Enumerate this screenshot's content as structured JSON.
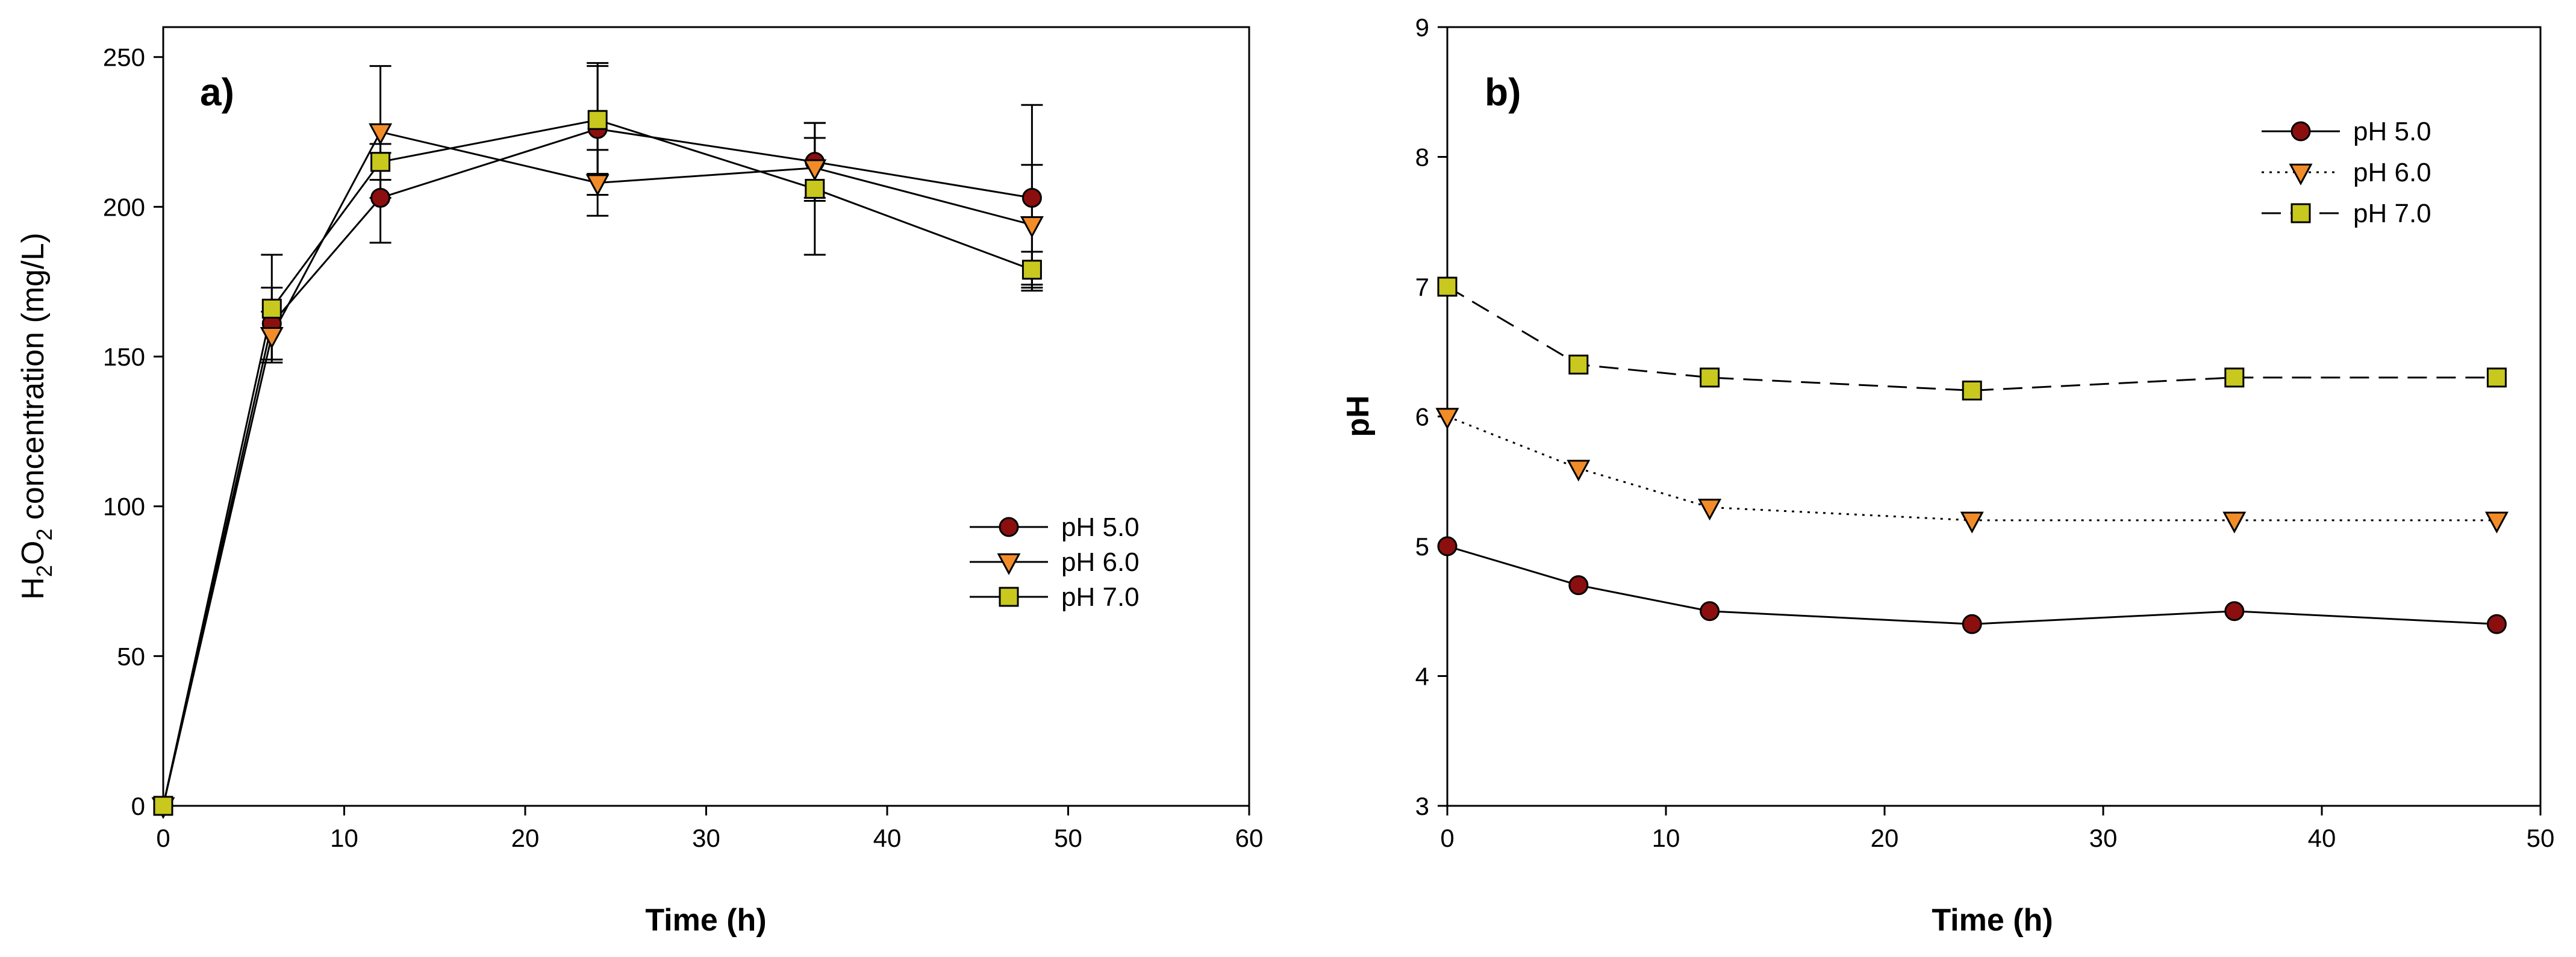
{
  "colors": {
    "ph5": "#8b0f0f",
    "ph6": "#f28c28",
    "ph7": "#c8c81e",
    "line": "#000000"
  },
  "chart_data": [
    {
      "id": "a",
      "type": "line",
      "panel_label": "a)",
      "xlabel": "Time (h)",
      "ylabel": {
        "main": "H",
        "sub1": "2",
        "mid": "O",
        "sub2": "2",
        "rest": " concentration (mg/L)"
      },
      "xlim": [
        0,
        60
      ],
      "ylim": [
        0,
        260
      ],
      "xticks": [
        0,
        10,
        20,
        30,
        40,
        50,
        60
      ],
      "yticks": [
        0,
        50,
        100,
        150,
        200,
        250
      ],
      "x": [
        0,
        6,
        12,
        24,
        36,
        48
      ],
      "legend_position": "right-middle",
      "series": [
        {
          "name": "pH 5.0",
          "marker": "circle",
          "color_key": "ph5",
          "dash": "solid",
          "values": [
            0,
            161,
            203,
            226,
            215,
            203
          ],
          "errors": [
            0,
            12,
            15,
            22,
            13,
            31
          ]
        },
        {
          "name": "pH 6.0",
          "marker": "triangle-down",
          "color_key": "ph6",
          "dash": "solid",
          "values": [
            0,
            157,
            225,
            208,
            213,
            194
          ],
          "errors": [
            0,
            8,
            22,
            11,
            10,
            20
          ]
        },
        {
          "name": "pH 7.0",
          "marker": "square",
          "color_key": "ph7",
          "dash": "solid",
          "values": [
            0,
            166,
            215,
            229,
            206,
            179
          ],
          "errors": [
            0,
            18,
            6,
            18,
            22,
            6
          ]
        }
      ]
    },
    {
      "id": "b",
      "type": "line",
      "panel_label": "b)",
      "xlabel": "Time (h)",
      "ylabel": {
        "main": "pH"
      },
      "xlim": [
        0,
        50
      ],
      "ylim": [
        3,
        9
      ],
      "xticks": [
        0,
        10,
        20,
        30,
        40,
        50
      ],
      "yticks": [
        3,
        4,
        5,
        6,
        7,
        8,
        9
      ],
      "x": [
        0,
        6,
        12,
        24,
        36,
        48
      ],
      "legend_position": "top-right",
      "series": [
        {
          "name": "pH 5.0",
          "marker": "circle",
          "color_key": "ph5",
          "dash": "solid",
          "values": [
            5.0,
            4.7,
            4.5,
            4.4,
            4.5,
            4.4
          ]
        },
        {
          "name": "pH 6.0",
          "marker": "triangle-down",
          "color_key": "ph6",
          "dash": "dotted",
          "values": [
            6.0,
            5.6,
            5.3,
            5.2,
            5.2,
            5.2
          ]
        },
        {
          "name": "pH 7.0",
          "marker": "square",
          "color_key": "ph7",
          "dash": "dashed",
          "values": [
            7.0,
            6.4,
            6.3,
            6.2,
            6.3,
            6.3
          ]
        }
      ]
    }
  ]
}
